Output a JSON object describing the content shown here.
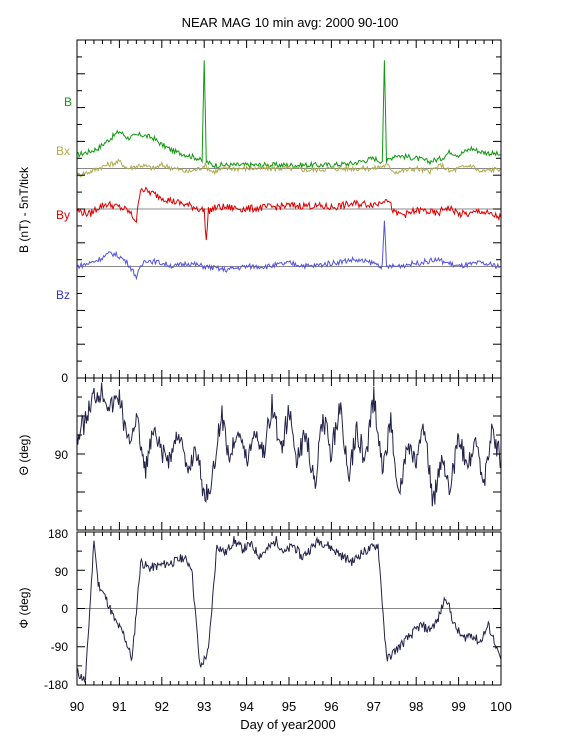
{
  "title": "NEAR MAG 10 min avg: 2000 90-100",
  "xlabel": "Day of year2000",
  "colors": {
    "B": "#119911",
    "Bx": "#b0ac50",
    "By": "#dd0000",
    "Bz": "#5555dd",
    "angle": "#22224a",
    "zero_line": "#888888"
  },
  "chart_data": [
    {
      "type": "line",
      "panel": "field",
      "ylabel": "B  (nT) - 5nT/tick",
      "y_bottom_label": "0",
      "grid": false,
      "x_range": [
        90,
        100
      ],
      "x_ticks": [
        "90",
        "91",
        "92",
        "93",
        "94",
        "95",
        "96",
        "97",
        "98",
        "99",
        "100"
      ],
      "series": [
        {
          "name": "B",
          "baseline": 22,
          "x": [
            90,
            90.3,
            90.5,
            90.7,
            91,
            91.2,
            91.5,
            91.8,
            92,
            92.3,
            92.6,
            92.85,
            92.95,
            93,
            93.05,
            93.2,
            93.5,
            94,
            94.5,
            95,
            95.5,
            96,
            96.5,
            97,
            97.2,
            97.25,
            97.3,
            97.5,
            98,
            98.3,
            98.6,
            98.8,
            99,
            99.3,
            99.5,
            100
          ],
          "values": [
            26,
            27,
            28,
            30,
            33,
            31,
            32,
            31,
            29,
            27,
            26,
            25,
            24,
            54,
            24,
            23,
            23,
            23,
            23,
            23,
            23,
            23,
            23.5,
            25,
            24,
            54,
            24,
            26,
            25,
            24,
            25,
            27,
            26,
            28,
            27,
            26
          ]
        },
        {
          "name": "Bx",
          "baseline": 22,
          "x": [
            90,
            90.3,
            90.5,
            90.7,
            91,
            91.2,
            91.5,
            91.8,
            92,
            92.3,
            92.6,
            92.9,
            93,
            93.2,
            93.5,
            94,
            94.5,
            95,
            95.5,
            96,
            96.5,
            97,
            97.3,
            97.5,
            98,
            98.3,
            98.6,
            98.8,
            99,
            99.3,
            99.5,
            100
          ],
          "values": [
            20,
            21,
            22,
            23,
            24,
            22,
            23,
            22,
            23,
            22,
            21,
            22,
            23,
            21,
            22,
            22,
            22,
            22,
            21.5,
            22,
            22,
            22,
            23,
            21,
            22,
            21,
            23,
            21,
            22,
            23,
            21,
            22
          ]
        },
        {
          "name": "By",
          "baseline": 6.5,
          "x": [
            90,
            90.3,
            90.5,
            90.7,
            91,
            91.2,
            91.4,
            91.5,
            91.6,
            91.8,
            92,
            92.2,
            92.5,
            92.8,
            93,
            93.05,
            93.1,
            93.3,
            93.5,
            94,
            94.5,
            95,
            95.5,
            96,
            96.5,
            97,
            97.1,
            97.3,
            97.5,
            97.8,
            98,
            98.2,
            98.5,
            98.7,
            98.9,
            99,
            99.3,
            99.5,
            99.7,
            100
          ],
          "values": [
            6,
            5,
            7,
            8,
            7,
            6,
            3,
            13,
            12,
            11,
            10,
            9,
            8,
            7,
            6,
            -3,
            6,
            7,
            7,
            6.5,
            7,
            7.5,
            7.5,
            7,
            8,
            8,
            8,
            10,
            5,
            5,
            6,
            6,
            5,
            7,
            6,
            5,
            5,
            6,
            5,
            4
          ]
        },
        {
          "name": "Bz",
          "baseline": -9,
          "x": [
            90,
            90.3,
            90.5,
            90.8,
            91,
            91.2,
            91.4,
            91.6,
            92,
            92.3,
            92.6,
            93,
            93.5,
            94,
            94.5,
            95,
            95.5,
            96,
            96.5,
            97,
            97.2,
            97.25,
            97.3,
            97.5,
            98,
            98.5,
            99,
            99.5,
            100
          ],
          "values": [
            -9,
            -8,
            -7,
            -5,
            -6,
            -8,
            -12,
            -7,
            -8,
            -9,
            -8,
            -9,
            -10,
            -9,
            -9,
            -8,
            -9,
            -8,
            -7,
            -8,
            -9,
            4,
            -9,
            -9,
            -8,
            -7,
            -9,
            -8,
            -9
          ]
        }
      ],
      "y_hidden_ticks_nT": 5
    },
    {
      "type": "line",
      "panel": "theta",
      "ylabel": "Θ (deg)",
      "y_range": [
        180,
        0
      ],
      "y_tick_labels": [
        "0",
        "90",
        "180"
      ],
      "grid": false,
      "series": [
        {
          "x": [
            90,
            90.2,
            90.4,
            90.6,
            90.8,
            91,
            91.2,
            91.4,
            91.6,
            91.8,
            92,
            92.2,
            92.4,
            92.6,
            92.8,
            93,
            93.2,
            93.4,
            93.6,
            93.8,
            94,
            94.2,
            94.4,
            94.6,
            94.8,
            95,
            95.2,
            95.4,
            95.6,
            95.8,
            96,
            96.2,
            96.4,
            96.6,
            96.8,
            97,
            97.2,
            97.4,
            97.6,
            97.8,
            98,
            98.2,
            98.4,
            98.6,
            98.8,
            99,
            99.2,
            99.4,
            99.6,
            99.8,
            100
          ],
          "values": [
            70,
            50,
            20,
            15,
            35,
            20,
            80,
            45,
            110,
            65,
            90,
            95,
            60,
            115,
            80,
            140,
            120,
            40,
            95,
            55,
            100,
            60,
            90,
            30,
            85,
            40,
            100,
            60,
            130,
            45,
            90,
            30,
            120,
            60,
            100,
            20,
            110,
            50,
            140,
            80,
            100,
            60,
            150,
            90,
            130,
            70,
            110,
            80,
            120,
            60,
            100
          ]
        }
      ]
    },
    {
      "type": "line",
      "panel": "phi",
      "ylabel": "Φ (deg)",
      "y_range": [
        -180,
        180
      ],
      "y_tick_labels": [
        "180",
        "90",
        "0",
        "-90",
        "-180"
      ],
      "grid": false,
      "series": [
        {
          "x": [
            90,
            90.2,
            90.4,
            90.5,
            90.7,
            90.9,
            91.1,
            91.3,
            91.5,
            91.7,
            91.9,
            92.1,
            92.3,
            92.5,
            92.7,
            92.9,
            93.1,
            93.3,
            93.5,
            93.7,
            93.9,
            94.1,
            94.3,
            94.5,
            94.7,
            94.9,
            95.1,
            95.3,
            95.5,
            95.7,
            95.9,
            96.1,
            96.3,
            96.5,
            96.7,
            96.9,
            97.1,
            97.3,
            97.5,
            97.7,
            97.9,
            98.1,
            98.3,
            98.5,
            98.7,
            98.9,
            99.1,
            99.3,
            99.5,
            99.7,
            99.9,
            100
          ],
          "values": [
            -150,
            -170,
            160,
            60,
            20,
            -30,
            -60,
            -120,
            110,
            95,
            100,
            105,
            110,
            120,
            100,
            -140,
            -100,
            150,
            130,
            160,
            140,
            150,
            125,
            140,
            160,
            130,
            150,
            120,
            140,
            160,
            150,
            135,
            120,
            110,
            130,
            140,
            150,
            -120,
            -100,
            -80,
            -60,
            -40,
            -50,
            -30,
            30,
            -40,
            -70,
            -60,
            -80,
            -40,
            -90,
            -120
          ]
        }
      ]
    }
  ]
}
